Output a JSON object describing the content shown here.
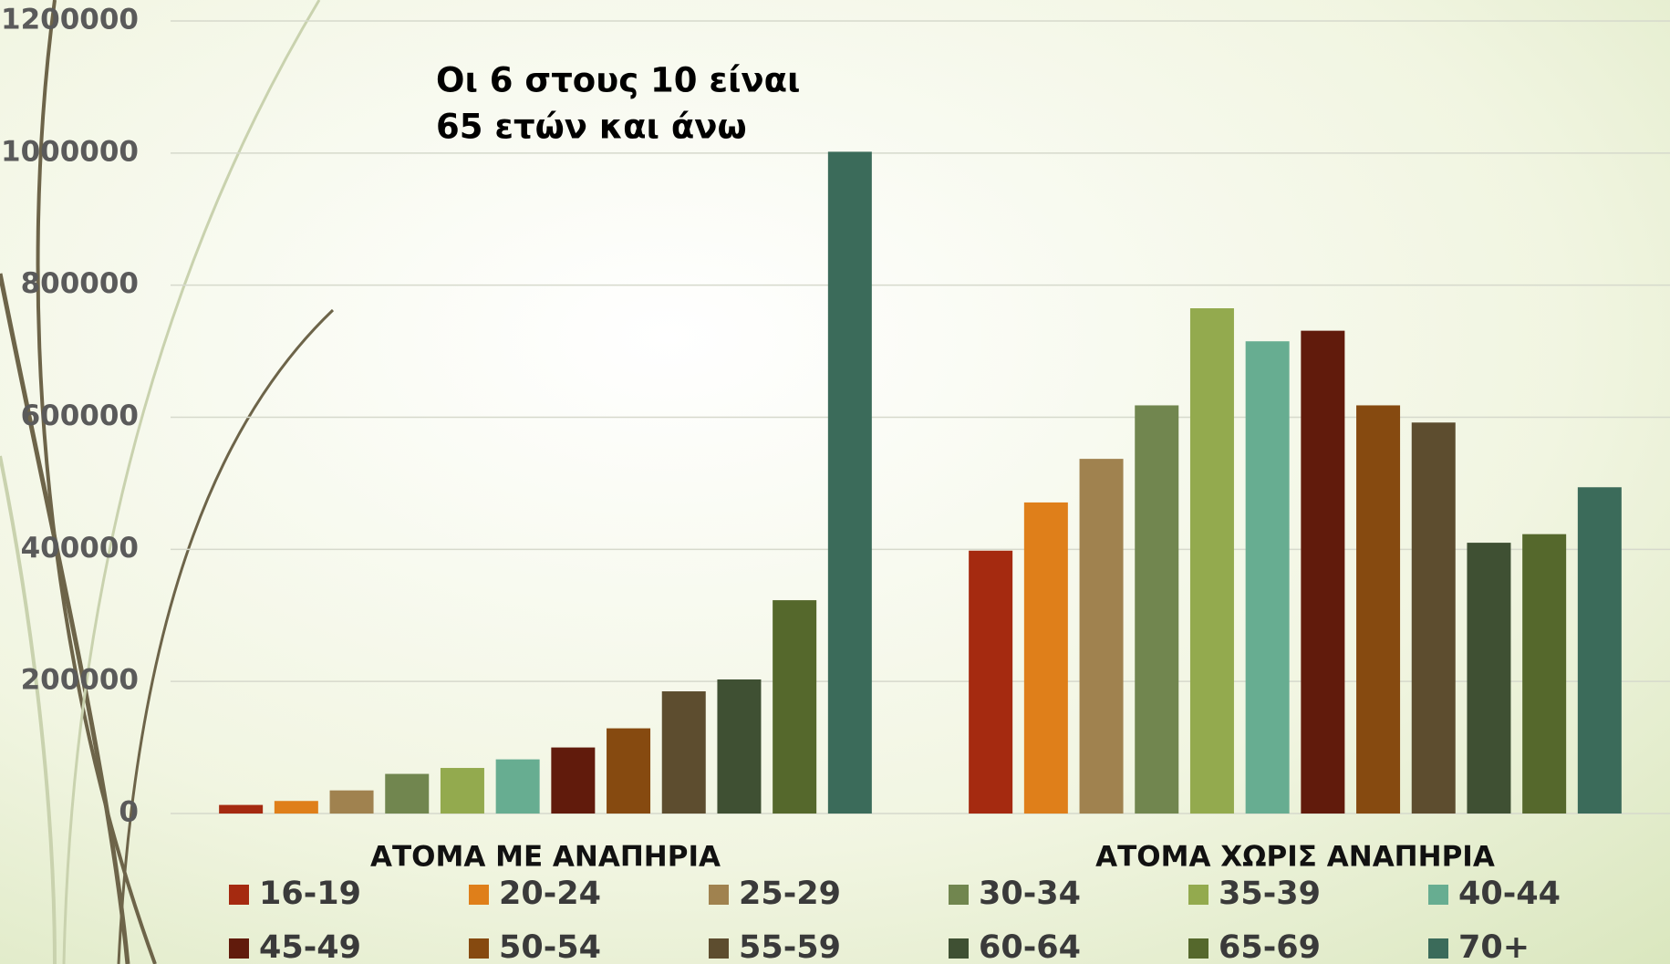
{
  "chart_data": {
    "type": "bar",
    "annotation": [
      "Οι 6 στους 10 είναι",
      "65 ετών και άνω"
    ],
    "categories": [
      "ΑΤΟΜΑ ΜΕ ΑΝΑΠΗΡΙΑ",
      "ΑΤΟΜΑ ΧΩΡΙΣ ΑΝΑΠΗΡΙΑ"
    ],
    "series": [
      {
        "name": "16-19",
        "color": "#a52a10",
        "values": [
          13000,
          398000
        ]
      },
      {
        "name": "20-24",
        "color": "#df7f1a",
        "values": [
          19000,
          471000
        ]
      },
      {
        "name": "25-29",
        "color": "#a0824f",
        "values": [
          35000,
          537000
        ]
      },
      {
        "name": "30-34",
        "color": "#71864f",
        "values": [
          60000,
          618000
        ]
      },
      {
        "name": "35-39",
        "color": "#93aa4e",
        "values": [
          69000,
          765000
        ]
      },
      {
        "name": "40-44",
        "color": "#67ad91",
        "values": [
          82000,
          715000
        ]
      },
      {
        "name": "45-49",
        "color": "#611b0c",
        "values": [
          100000,
          731000
        ]
      },
      {
        "name": "50-54",
        "color": "#864a10",
        "values": [
          129000,
          618000
        ]
      },
      {
        "name": "55-59",
        "color": "#5d4d2f",
        "values": [
          185000,
          592000
        ]
      },
      {
        "name": "60-64",
        "color": "#3f5033",
        "values": [
          203000,
          410000
        ]
      },
      {
        "name": "65-69",
        "color": "#55682c",
        "values": [
          323000,
          423000
        ]
      },
      {
        "name": "70+",
        "color": "#3b6b5a",
        "values": [
          1002000,
          494000
        ]
      }
    ],
    "ylim": [
      0,
      1200000
    ],
    "yticks": [
      0,
      200000,
      400000,
      600000,
      800000,
      1000000,
      1200000
    ],
    "grid": true,
    "legend": "bottom"
  }
}
